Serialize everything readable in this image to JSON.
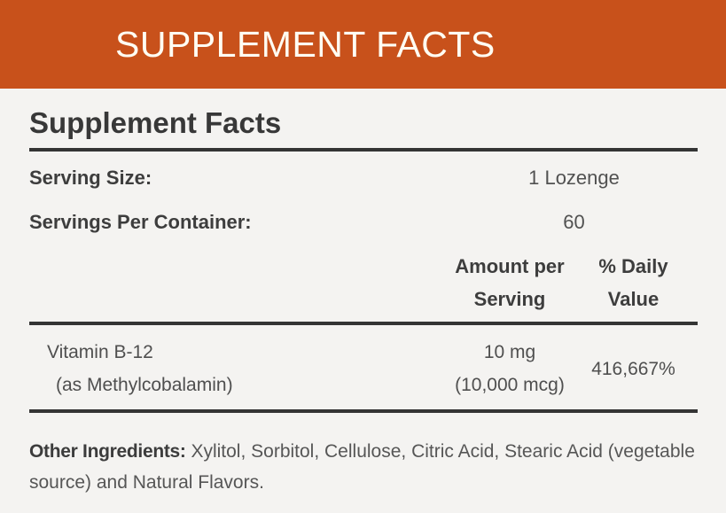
{
  "banner": {
    "title": "SUPPLEMENT FACTS"
  },
  "panel": {
    "title": "Supplement Facts",
    "serving_rows": [
      {
        "label": "Serving Size:",
        "value": "1 Lozenge"
      },
      {
        "label": "Servings Per Container:",
        "value": "60"
      }
    ],
    "columns": {
      "amount_line1": "Amount per",
      "amount_line2": "Serving",
      "dv_line1": "% Daily",
      "dv_line2": "Value"
    },
    "rows": [
      {
        "name_line1": "Vitamin B-12",
        "name_line2": "(as Methylcobalamin)",
        "amount_line1": "10 mg",
        "amount_line2": "(10,000 mcg)",
        "daily_value": "416,667%"
      }
    ],
    "other_ingredients_label": "Other Ingredients:",
    "other_ingredients_text": " Xylitol, Sorbitol, Cellulose, Citric Acid, Stearic Acid (vegetable source) and Natural Flavors."
  },
  "colors": {
    "brand_orange": "#c8511b",
    "page_background": "#f4f3f1",
    "rule_dark": "#343434",
    "banner_text": "#fffdf3"
  }
}
